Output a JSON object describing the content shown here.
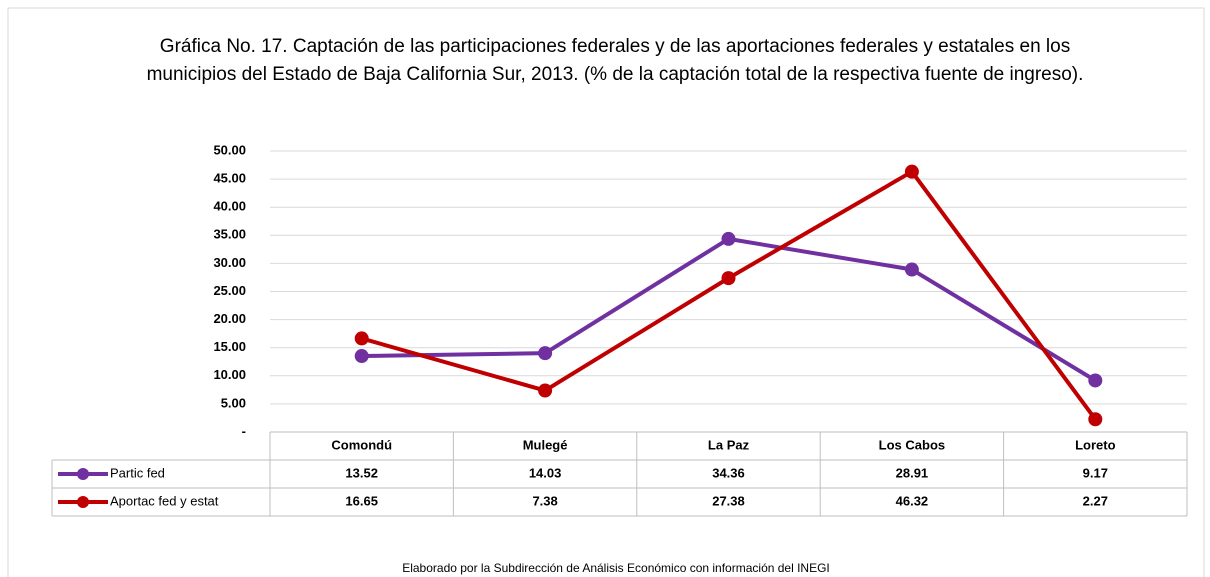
{
  "chart_data": {
    "type": "line",
    "title": "Gráfica No. 17. Captación de las participaciones federales y de las aportaciones federales y estatales en los municipios del Estado de Baja California Sur, 2013. (% de la captación total de la respectiva fuente de ingreso).",
    "categories": [
      "Comondú",
      "Mulegé",
      "La Paz",
      "Los Cabos",
      "Loreto"
    ],
    "series": [
      {
        "name": "Partic fed",
        "color": "#7030a0",
        "values": [
          13.52,
          14.03,
          34.36,
          28.91,
          9.17
        ]
      },
      {
        "name": "Aportac fed y estat",
        "color": "#c00000",
        "values": [
          16.65,
          7.38,
          27.38,
          46.32,
          2.27
        ]
      }
    ],
    "ylim": [
      0,
      50
    ],
    "yticks": [
      {
        "value": 0,
        "label": "-"
      },
      {
        "value": 5,
        "label": "5.00"
      },
      {
        "value": 10,
        "label": "10.00"
      },
      {
        "value": 15,
        "label": "15.00"
      },
      {
        "value": 20,
        "label": "20.00"
      },
      {
        "value": 25,
        "label": "25.00"
      },
      {
        "value": 30,
        "label": "30.00"
      },
      {
        "value": 35,
        "label": "35.00"
      },
      {
        "value": 40,
        "label": "40.00"
      },
      {
        "value": 45,
        "label": "45.00"
      },
      {
        "value": 50,
        "label": "50.00"
      }
    ],
    "grid": true,
    "data_table": true,
    "source": "Elaborado por la Subdirección de Análisis Económico con información del INEGI"
  }
}
